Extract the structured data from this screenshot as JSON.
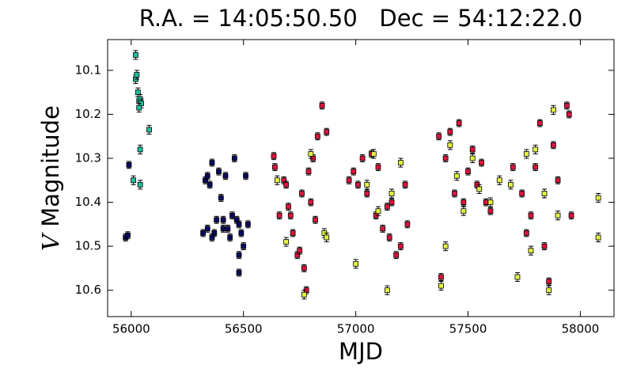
{
  "chart_data": {
    "type": "scatter",
    "title": "R.A. = 14:05:50.50   Dec = 54:12:22.0",
    "xlabel": "MJD",
    "ylabel_var": "V",
    "ylabel": "Magnitude",
    "xlim": [
      55895,
      58150
    ],
    "ylim": [
      10.66,
      10.03
    ],
    "y_inverted": true,
    "xticks": [
      56000,
      56500,
      57000,
      57500,
      58000
    ],
    "yticks": [
      10.1,
      10.2,
      10.3,
      10.4,
      10.5,
      10.6
    ],
    "series": [
      {
        "color": "#20c0a0",
        "yerr": 0.01,
        "x": [
          56020,
          56020,
          56025,
          56030,
          56035,
          56040,
          56045,
          56035,
          56080,
          56040,
          56040,
          56010
        ],
        "y": [
          10.065,
          10.12,
          10.11,
          10.15,
          10.17,
          10.165,
          10.175,
          10.185,
          10.235,
          10.28,
          10.36,
          10.35
        ]
      },
      {
        "color": "#0a0a60",
        "yerr": 0.008,
        "x": [
          55975,
          55985,
          55990,
          56320,
          56330,
          56340,
          56350,
          56360,
          56370,
          56380,
          56390,
          56400,
          56410,
          56420,
          56430,
          56440,
          56450,
          56460,
          56470,
          56480,
          56480,
          56490,
          56500,
          56510,
          56520,
          56480,
          56340,
          56360,
          56410
        ],
        "y": [
          10.48,
          10.475,
          10.315,
          10.47,
          10.35,
          10.34,
          10.36,
          10.31,
          10.47,
          10.44,
          10.33,
          10.39,
          10.46,
          10.34,
          10.46,
          10.48,
          10.43,
          10.3,
          10.44,
          10.45,
          10.52,
          10.47,
          10.5,
          10.34,
          10.45,
          10.56,
          10.46,
          10.48,
          10.44
        ]
      },
      {
        "color": "#dc143c",
        "yerr": 0.008,
        "x": [
          56635,
          56640,
          56660,
          56680,
          56690,
          56700,
          56710,
          56720,
          56740,
          56750,
          56760,
          56770,
          56780,
          56790,
          56800,
          56810,
          56820,
          56830,
          56850,
          56870,
          56970,
          56990,
          57010,
          57030,
          57050,
          57070,
          57090,
          57100,
          57120,
          57140,
          57150,
          57160,
          57180,
          57200,
          57220,
          57230,
          57370,
          57380,
          57400,
          57420,
          57440,
          57460,
          57480,
          57500,
          57520,
          57540,
          57560,
          57580,
          57600,
          57700,
          57740,
          57760,
          57780,
          57800,
          57820,
          57840,
          57860,
          57880,
          57900,
          57940,
          57950,
          57960
        ],
        "y": [
          10.295,
          10.32,
          10.43,
          10.35,
          10.36,
          10.41,
          10.43,
          10.47,
          10.52,
          10.51,
          10.38,
          10.55,
          10.6,
          10.33,
          10.4,
          10.3,
          10.44,
          10.25,
          10.18,
          10.24,
          10.35,
          10.33,
          10.36,
          10.3,
          10.38,
          10.29,
          10.43,
          10.32,
          10.46,
          10.41,
          10.48,
          10.4,
          10.52,
          10.5,
          10.36,
          10.45,
          10.25,
          10.57,
          10.3,
          10.24,
          10.38,
          10.22,
          10.4,
          10.33,
          10.28,
          10.36,
          10.31,
          10.4,
          10.42,
          10.32,
          10.38,
          10.47,
          10.43,
          10.32,
          10.22,
          10.5,
          10.58,
          10.27,
          10.35,
          10.18,
          10.2,
          10.43
        ]
      },
      {
        "color": "#e2f240",
        "yerr": 0.01,
        "x": [
          56650,
          56690,
          56770,
          56800,
          56860,
          56870,
          57000,
          57050,
          57080,
          57100,
          57140,
          57160,
          57200,
          57380,
          57400,
          57420,
          57450,
          57480,
          57520,
          57550,
          57600,
          57640,
          57690,
          57720,
          57760,
          57780,
          57800,
          57840,
          57860,
          57880,
          57900,
          58080,
          58080
        ],
        "y": [
          10.35,
          10.49,
          10.61,
          10.29,
          10.47,
          10.48,
          10.54,
          10.36,
          10.29,
          10.42,
          10.6,
          10.38,
          10.31,
          10.59,
          10.5,
          10.27,
          10.34,
          10.42,
          10.3,
          10.37,
          10.4,
          10.35,
          10.36,
          10.57,
          10.29,
          10.51,
          10.28,
          10.38,
          10.6,
          10.19,
          10.43,
          10.39,
          10.48
        ]
      }
    ]
  }
}
